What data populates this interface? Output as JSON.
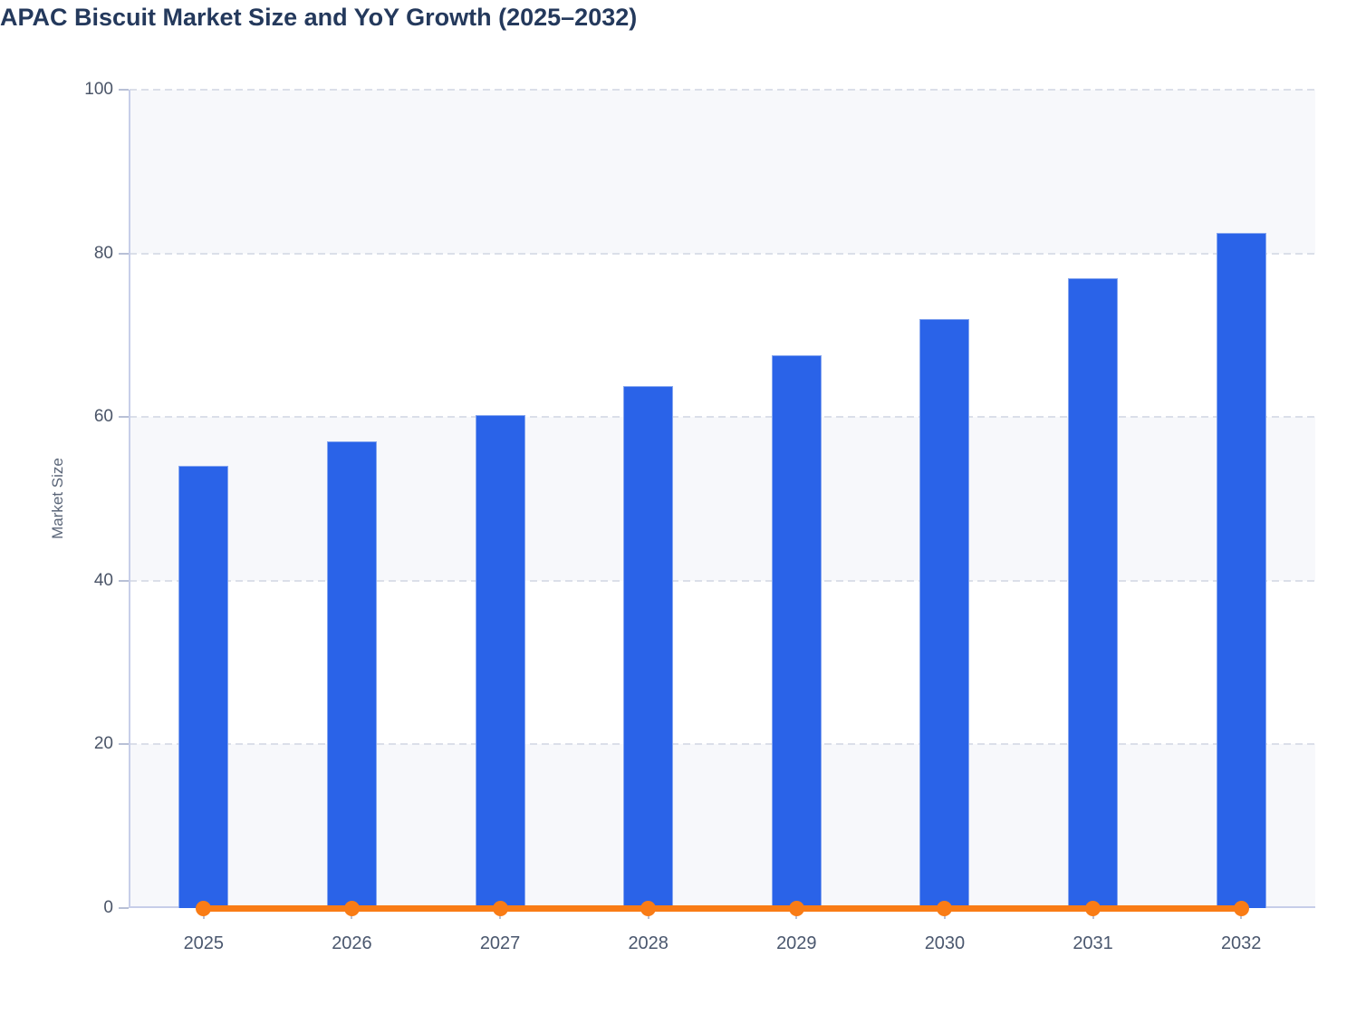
{
  "chart_data": {
    "type": "bar",
    "title": "APAC Biscuit Market Size and YoY Growth (2025–2032)",
    "ylabel": "Market Size",
    "xlabel": "",
    "categories": [
      "2025",
      "2026",
      "2027",
      "2028",
      "2029",
      "2030",
      "2031",
      "2032"
    ],
    "series": [
      {
        "name": "Market Size",
        "type": "bar",
        "values": [
          54.0,
          57.0,
          60.2,
          63.8,
          67.6,
          72.0,
          77.0,
          82.5
        ]
      },
      {
        "name": "YoY Growth",
        "type": "line",
        "values": [
          0,
          0,
          0,
          0,
          0,
          0,
          0,
          0
        ]
      }
    ],
    "ylim": [
      0,
      100
    ],
    "yticks": [
      0,
      20,
      40,
      60,
      80,
      100
    ],
    "grid": "horizontal-dashed",
    "legend": "none",
    "theme": {
      "bar_color": "#2a63e8",
      "bar_edge_color": "#86a6ef",
      "line_color": "#f97c16",
      "title_color": "#24395c",
      "axis_color": "#c7cee9",
      "tick_color": "#b8c0d6",
      "grid_color": "#dbdfe9",
      "band_color": "#f7f8fb",
      "band_alt_color": "#ffffff",
      "label_color": "#4a576e"
    }
  }
}
